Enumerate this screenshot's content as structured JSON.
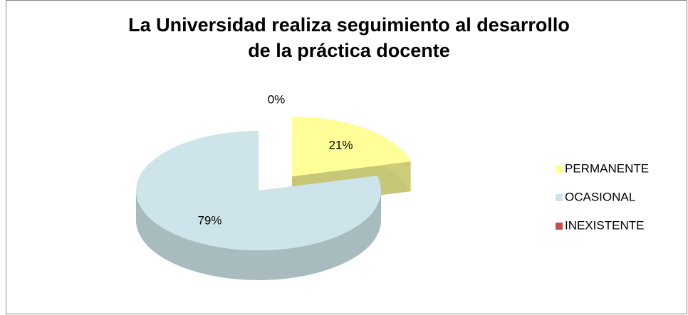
{
  "chart_data": {
    "type": "pie",
    "title": [
      "La Universidad realiza seguimiento al desarrollo",
      "de la práctica docente"
    ],
    "categories": [
      "PERMANENTE",
      "OCASIONAL",
      "INEXISTENTE"
    ],
    "values": [
      21,
      79,
      0
    ],
    "value_labels": [
      "21%",
      "79%",
      "0%"
    ],
    "colors": [
      "#FFFF99",
      "#CDE5EA",
      "#C0504D"
    ],
    "legend": "right"
  }
}
